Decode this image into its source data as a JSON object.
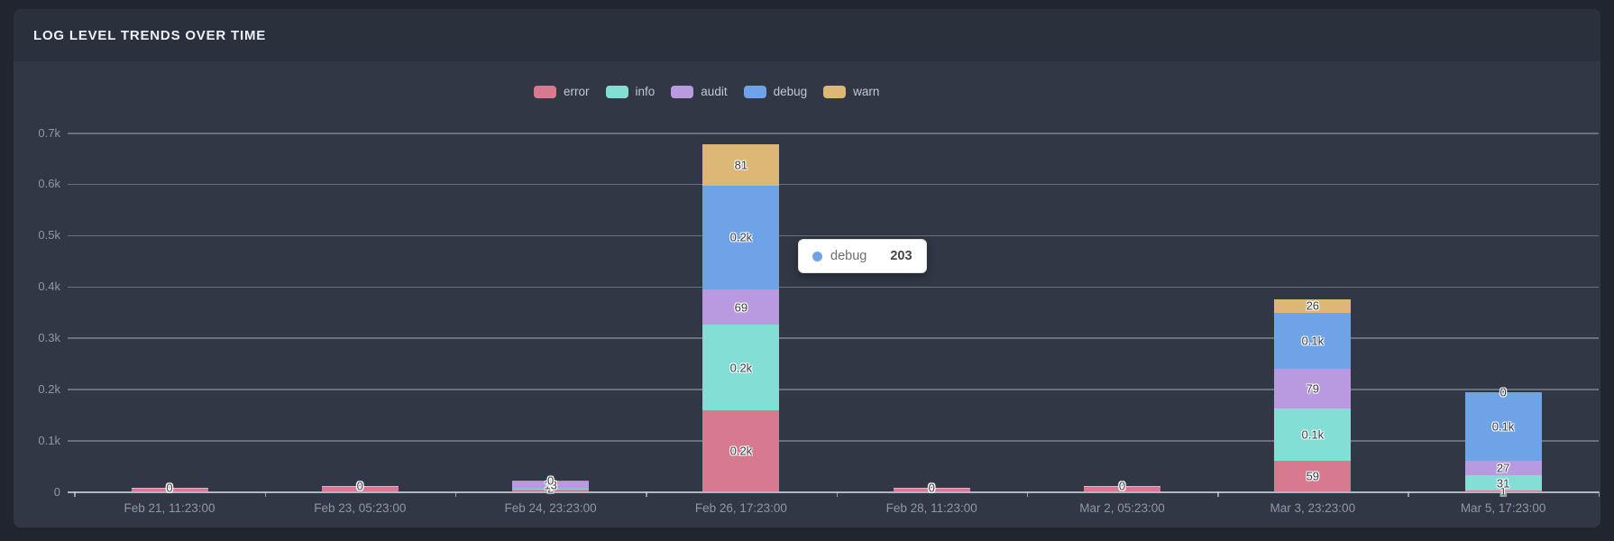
{
  "panel": {
    "title": "LOG LEVEL TRENDS OVER TIME"
  },
  "colors": {
    "error": "#d7798f",
    "info": "#83ded6",
    "audit": "#b99ae1",
    "debug": "#6fa3e8",
    "warn": "#dcb776"
  },
  "legend": {
    "items": [
      "error",
      "info",
      "audit",
      "debug",
      "warn"
    ]
  },
  "tooltip": {
    "series": "debug",
    "value": "203"
  },
  "chart_data": {
    "type": "bar",
    "stacked": true,
    "title": "LOG LEVEL TRENDS OVER TIME",
    "xlabel": "",
    "ylabel": "",
    "ylim": [
      0,
      723
    ],
    "grid": true,
    "legend_position": "top-center",
    "yticks": [
      "0",
      "0.1k",
      "0.2k",
      "0.3k",
      "0.4k",
      "0.5k",
      "0.6k",
      "0.7k"
    ],
    "ytick_values": [
      0,
      100,
      200,
      300,
      400,
      500,
      600,
      700
    ],
    "series_order": [
      "error",
      "info",
      "audit",
      "debug",
      "warn"
    ],
    "categories": [
      "Feb 21, 11:23:00",
      "Feb 23, 05:23:00",
      "Feb 24, 23:23:00",
      "Feb 26, 17:23:00",
      "Feb 28, 11:23:00",
      "Mar 2, 05:23:00",
      "Mar 3, 23:23:00",
      "Mar 5, 17:23:00"
    ],
    "bars": [
      {
        "x": "Feb 21, 11:23:00",
        "segments": [
          {
            "series": "error",
            "value": 5,
            "label": ""
          },
          {
            "series": "info",
            "value": 2,
            "label": ""
          },
          {
            "series": "audit",
            "value": 0,
            "label": "0"
          },
          {
            "series": "debug",
            "value": 0,
            "label": "0"
          },
          {
            "series": "warn",
            "value": 0,
            "label": "0"
          }
        ]
      },
      {
        "x": "Feb 23, 05:23:00",
        "segments": [
          {
            "series": "error",
            "value": 8,
            "label": ""
          },
          {
            "series": "info",
            "value": 3,
            "label": ""
          },
          {
            "series": "audit",
            "value": 0,
            "label": "0"
          },
          {
            "series": "debug",
            "value": 0,
            "label": "0"
          },
          {
            "series": "warn",
            "value": 0,
            "label": "0"
          }
        ]
      },
      {
        "x": "Feb 24, 23:23:00",
        "segments": [
          {
            "series": "error",
            "value": 4,
            "label": ""
          },
          {
            "series": "info",
            "value": 2,
            "label": "2"
          },
          {
            "series": "audit",
            "value": 13,
            "label": "13"
          },
          {
            "series": "debug",
            "value": 2,
            "label": "2"
          },
          {
            "series": "warn",
            "value": 0,
            "label": "0"
          }
        ]
      },
      {
        "x": "Feb 26, 17:23:00",
        "segments": [
          {
            "series": "error",
            "value": 158,
            "label": "0.2k"
          },
          {
            "series": "info",
            "value": 167,
            "label": "0.2k"
          },
          {
            "series": "audit",
            "value": 69,
            "label": "69"
          },
          {
            "series": "debug",
            "value": 203,
            "label": "0.2k"
          },
          {
            "series": "warn",
            "value": 81,
            "label": "81"
          }
        ]
      },
      {
        "x": "Feb 28, 11:23:00",
        "segments": [
          {
            "series": "error",
            "value": 5,
            "label": ""
          },
          {
            "series": "info",
            "value": 2,
            "label": ""
          },
          {
            "series": "audit",
            "value": 0,
            "label": "0"
          },
          {
            "series": "debug",
            "value": 0,
            "label": "0"
          },
          {
            "series": "warn",
            "value": 0,
            "label": "0"
          }
        ]
      },
      {
        "x": "Mar 2, 05:23:00",
        "segments": [
          {
            "series": "error",
            "value": 8,
            "label": ""
          },
          {
            "series": "info",
            "value": 3,
            "label": ""
          },
          {
            "series": "audit",
            "value": 0,
            "label": "0"
          },
          {
            "series": "debug",
            "value": 0,
            "label": "0"
          },
          {
            "series": "warn",
            "value": 0,
            "label": "0"
          }
        ]
      },
      {
        "x": "Mar 3, 23:23:00",
        "segments": [
          {
            "series": "error",
            "value": 59,
            "label": "59"
          },
          {
            "series": "info",
            "value": 102,
            "label": "0.1k"
          },
          {
            "series": "audit",
            "value": 79,
            "label": "79"
          },
          {
            "series": "debug",
            "value": 109,
            "label": "0.1k"
          },
          {
            "series": "warn",
            "value": 26,
            "label": "26"
          }
        ]
      },
      {
        "x": "Mar 5, 17:23:00",
        "segments": [
          {
            "series": "error",
            "value": 1,
            "label": "1"
          },
          {
            "series": "info",
            "value": 31,
            "label": "31"
          },
          {
            "series": "audit",
            "value": 27,
            "label": "27"
          },
          {
            "series": "debug",
            "value": 134,
            "label": "0.1k"
          },
          {
            "series": "warn",
            "value": 0,
            "label": "0"
          }
        ]
      }
    ]
  }
}
